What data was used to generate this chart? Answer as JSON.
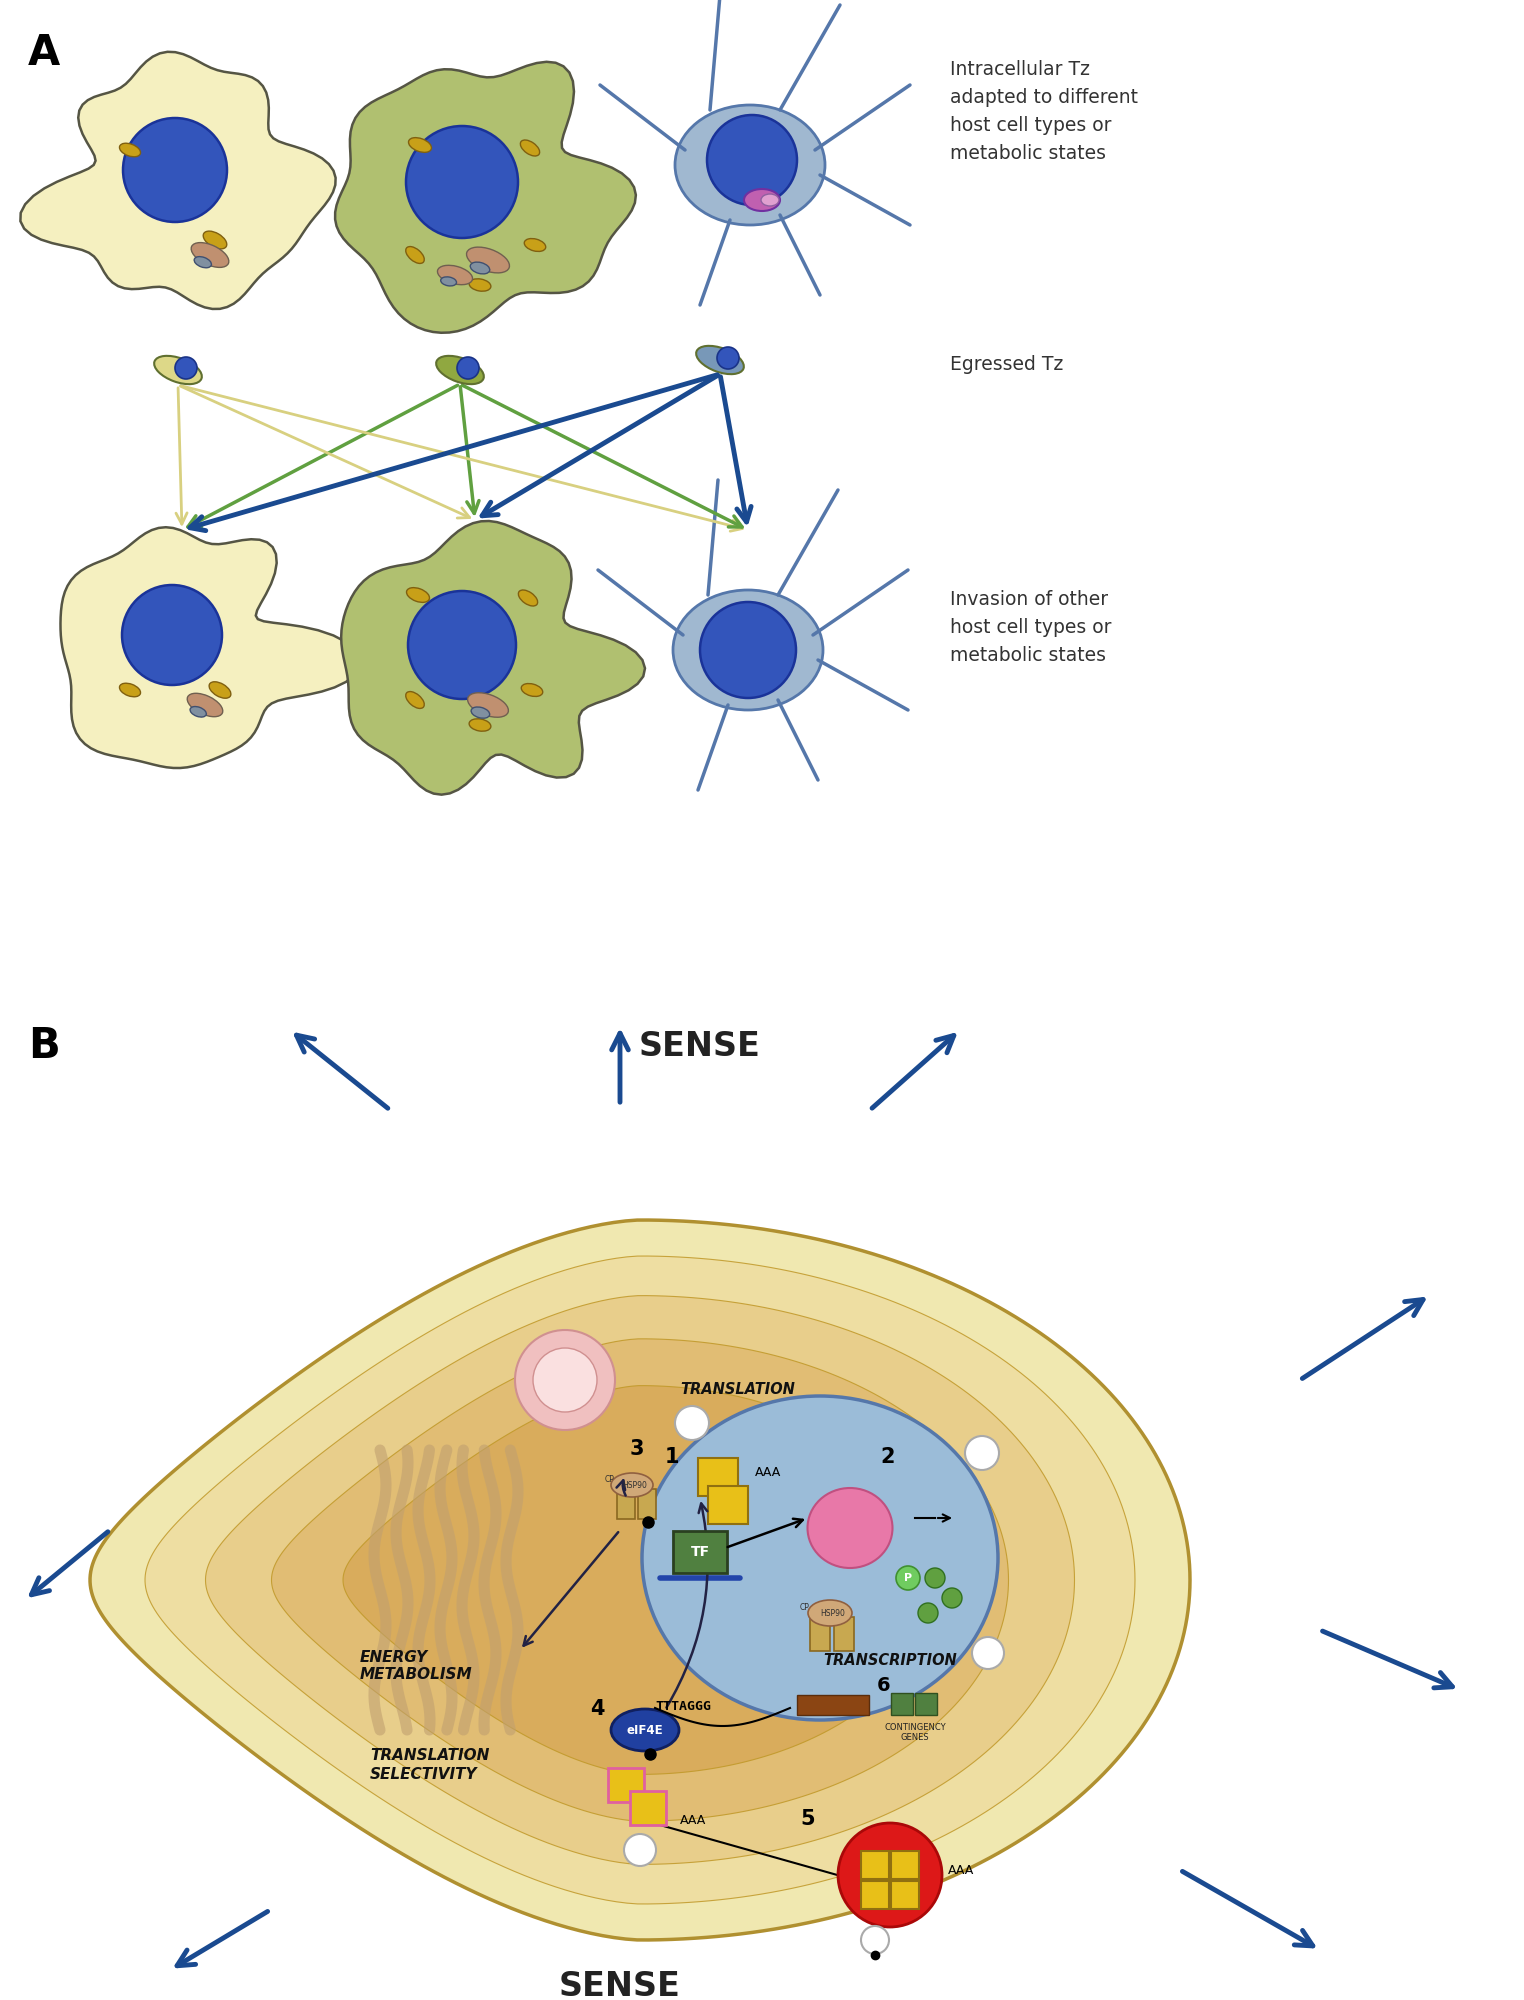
{
  "fig_width": 15.24,
  "fig_height": 20.0,
  "bg_color": "#ffffff",
  "panel_A_label": "A",
  "panel_B_label": "B",
  "text_intracellular": "Intracellular Tz\nadapted to different\nhost cell types or\nmetabolic states",
  "text_egressed": "Egressed Tz",
  "text_invasion": "Invasion of other\nhost cell types or\nmetabolic states",
  "text_sense_top": "SENSE",
  "text_sense_bottom": "SENSE",
  "text_translation": "TRANSLATION",
  "text_energy": "ENERGY\nMETABOLISM",
  "text_translation_sel": "TRANSLATION\nSELECTIVITY",
  "text_transcription": "TRANSCRIPTION",
  "text_tttaggg": "TTTAGGG",
  "text_contingency": "CONTINGENCY\nGENES",
  "text_eif4e": "eIF4E",
  "text_tf": "TF",
  "text_aaa1": "AAA",
  "text_aaa2": "AAA",
  "text_aaa3": "AAA",
  "num1": "1",
  "num2": "2",
  "num3": "3",
  "num4": "4",
  "num5": "5",
  "num6": "6",
  "yellow_cell_color": "#f5f0c0",
  "green_cell_color": "#b0c070",
  "blue_cell_color": "#a0b8d0",
  "nucleus_dark": "#3355aa",
  "arrow_yellow": "#d8d080",
  "arrow_green": "#60a040",
  "arrow_blue": "#1a4a90",
  "cell_B_outer": "#f0e8b0",
  "cell_B_inner1": "#eedda0",
  "cell_B_inner2": "#e8cc88",
  "cell_B_inner3": "#e0bb70",
  "cell_B_darkzone": "#d8aa58",
  "nucleus_B_color": "#9bbcd8",
  "nucleus_B_edge": "#5577aa"
}
